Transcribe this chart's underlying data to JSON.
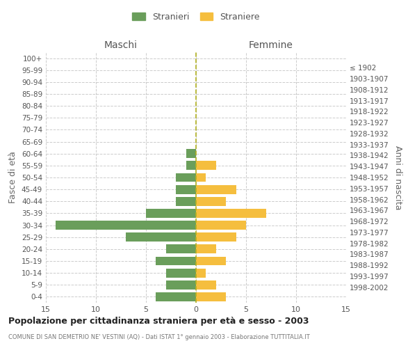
{
  "age_groups": [
    "0-4",
    "5-9",
    "10-14",
    "15-19",
    "20-24",
    "25-29",
    "30-34",
    "35-39",
    "40-44",
    "45-49",
    "50-54",
    "55-59",
    "60-64",
    "65-69",
    "70-74",
    "75-79",
    "80-84",
    "85-89",
    "90-94",
    "95-99",
    "100+"
  ],
  "birth_years": [
    "1998-2002",
    "1993-1997",
    "1988-1992",
    "1983-1987",
    "1978-1982",
    "1973-1977",
    "1968-1972",
    "1963-1967",
    "1958-1962",
    "1953-1957",
    "1948-1952",
    "1943-1947",
    "1938-1942",
    "1933-1937",
    "1928-1932",
    "1923-1927",
    "1918-1922",
    "1913-1917",
    "1908-1912",
    "1903-1907",
    "≤ 1902"
  ],
  "males": [
    4,
    3,
    3,
    4,
    3,
    7,
    14,
    5,
    2,
    2,
    2,
    1,
    1,
    0,
    0,
    0,
    0,
    0,
    0,
    0,
    0
  ],
  "females": [
    3,
    2,
    1,
    3,
    2,
    4,
    5,
    7,
    3,
    4,
    1,
    2,
    0,
    0,
    0,
    0,
    0,
    0,
    0,
    0,
    0
  ],
  "male_color": "#6a9e5b",
  "female_color": "#f5be3e",
  "center_line_color": "#b0b020",
  "grid_color": "#cccccc",
  "bg_color": "#ffffff",
  "title": "Popolazione per cittadinanza straniera per età e sesso - 2003",
  "subtitle": "COMUNE DI SAN DEMETRIO NE' VESTINI (AQ) - Dati ISTAT 1° gennaio 2003 - Elaborazione TUTTITALIA.IT",
  "ylabel_left": "Fasce di età",
  "ylabel_right": "Anni di nascita",
  "xlabel_maschi": "Maschi",
  "xlabel_femmine": "Femmine",
  "legend_maschi": "Stranieri",
  "legend_femmine": "Straniere",
  "xlim": 15,
  "bar_height": 0.75
}
